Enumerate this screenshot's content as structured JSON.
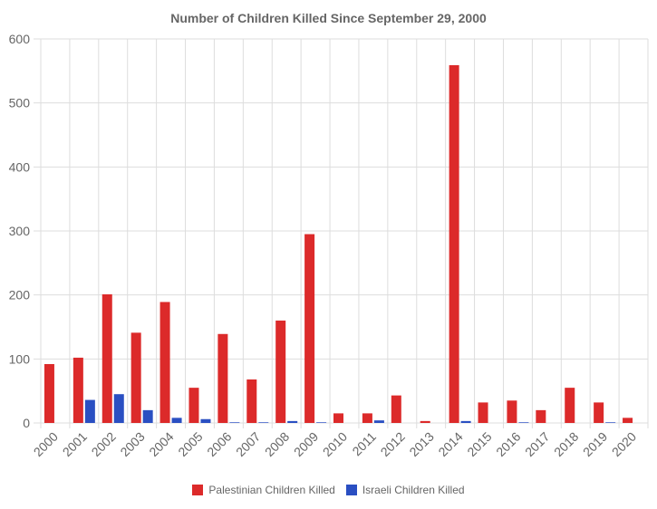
{
  "chart_data": {
    "type": "bar",
    "title": "Number of Children Killed Since September 29, 2000",
    "xlabel": "",
    "ylabel": "",
    "ylim": [
      0,
      600
    ],
    "yticks": [
      0,
      100,
      200,
      300,
      400,
      500,
      600
    ],
    "grid": true,
    "legend_position": "bottom",
    "categories": [
      "2000",
      "2001",
      "2002",
      "2003",
      "2004",
      "2005",
      "2006",
      "2007",
      "2008",
      "2009",
      "2010",
      "2011",
      "2012",
      "2013",
      "2014",
      "2015",
      "2016",
      "2017",
      "2018",
      "2019",
      "2020"
    ],
    "series": [
      {
        "name": "Palestinian Children Killed",
        "color": "#dc2a2a",
        "values": [
          92,
          102,
          201,
          141,
          189,
          55,
          139,
          68,
          160,
          295,
          15,
          15,
          43,
          3,
          559,
          32,
          35,
          20,
          55,
          32,
          8
        ]
      },
      {
        "name": "Israeli Children Killed",
        "color": "#2a4fc2",
        "values": [
          0,
          36,
          45,
          20,
          8,
          6,
          1,
          1,
          3,
          1,
          0,
          4,
          0,
          0,
          3,
          0,
          1,
          0,
          0,
          1,
          0
        ]
      }
    ]
  }
}
